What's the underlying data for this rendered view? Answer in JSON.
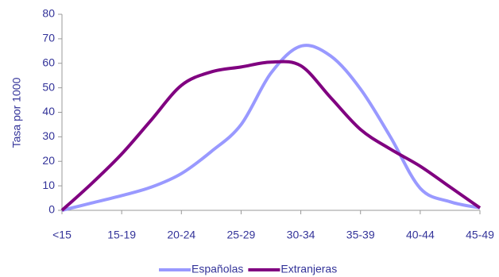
{
  "chart_data": {
    "type": "line",
    "y_label": "Tasa por 1000",
    "categories": [
      "<15",
      null,
      "15-19",
      null,
      "20-24",
      null,
      "25-29",
      null,
      "30-34",
      null,
      "35-39",
      null,
      "40-44",
      null,
      "45-49"
    ],
    "series": [
      {
        "name": "Españolas",
        "color": "#9999ff",
        "values": [
          0,
          3,
          6,
          9.5,
          15,
          24,
          35,
          56,
          67,
          63,
          49.5,
          30,
          9,
          3.5,
          1
        ]
      },
      {
        "name": "Extranjeras",
        "color": "#800080",
        "values": [
          0,
          11,
          23,
          37,
          51,
          56.5,
          58.5,
          60.5,
          59,
          46,
          33,
          25,
          18,
          9.5,
          1
        ]
      }
    ],
    "ylim": [
      0,
      80
    ],
    "yticks": [
      0,
      10,
      20,
      30,
      40,
      50,
      60,
      70,
      80
    ],
    "grid": false,
    "legend": "bottom"
  }
}
